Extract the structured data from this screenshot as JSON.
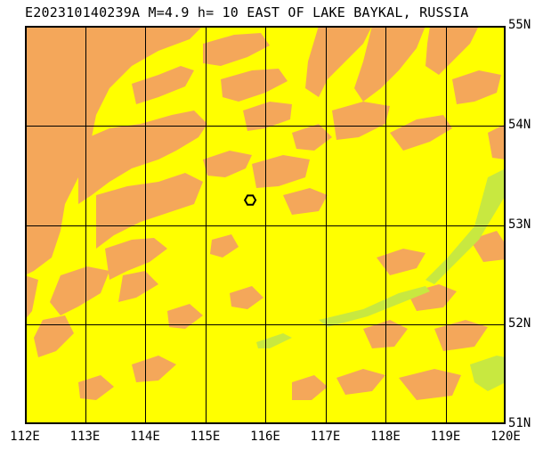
{
  "title": "E202310140239A M=4.9 h= 10 EAST OF LAKE BAYKAL, RUSSIA",
  "map": {
    "extent": {
      "lon_min": 112,
      "lon_max": 120,
      "lat_min": 51,
      "lat_max": 55
    },
    "longitude_labels": [
      {
        "value": 112,
        "label": "112E"
      },
      {
        "value": 113,
        "label": "113E"
      },
      {
        "value": 114,
        "label": "114E"
      },
      {
        "value": 115,
        "label": "115E"
      },
      {
        "value": 116,
        "label": "116E"
      },
      {
        "value": 117,
        "label": "117E"
      },
      {
        "value": 118,
        "label": "118E"
      },
      {
        "value": 119,
        "label": "119E"
      },
      {
        "value": 120,
        "label": "120E"
      }
    ],
    "latitude_labels": [
      {
        "value": 55,
        "label": "55N"
      },
      {
        "value": 54,
        "label": "54N"
      },
      {
        "value": 53,
        "label": "53N"
      },
      {
        "value": 52,
        "label": "52N"
      },
      {
        "value": 51,
        "label": "51N"
      }
    ],
    "epicenter": {
      "lon": 115.75,
      "lat": 53.25,
      "marker": "hexagon-marker"
    },
    "colors": {
      "lowland": "#FFFF00",
      "highland": "#F4A75A",
      "valley": "#C8E840",
      "grid": "#000000"
    },
    "grid": true
  }
}
